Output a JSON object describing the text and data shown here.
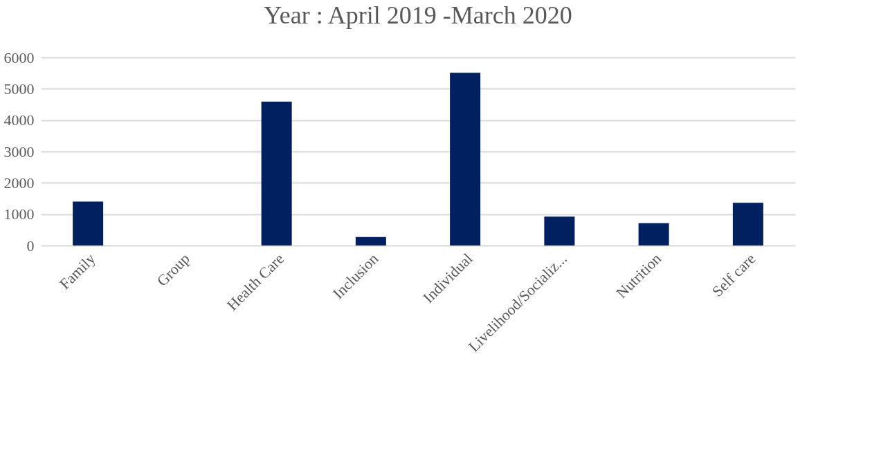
{
  "chart_data": {
    "type": "bar",
    "title": "Year : April 2019 -March 2020",
    "categories": [
      "Family",
      "Group",
      "Health Care",
      "Inclusion",
      "Individual",
      "Livelihood/Socializ...",
      "Nutrition",
      "Self care"
    ],
    "values": [
      1400,
      0,
      4590,
      270,
      5510,
      920,
      710,
      1360
    ],
    "color": "#002060",
    "ylim": [
      0,
      6000
    ],
    "yticks": [
      0,
      1000,
      2000,
      3000,
      4000,
      5000,
      6000
    ],
    "grid": "y"
  }
}
